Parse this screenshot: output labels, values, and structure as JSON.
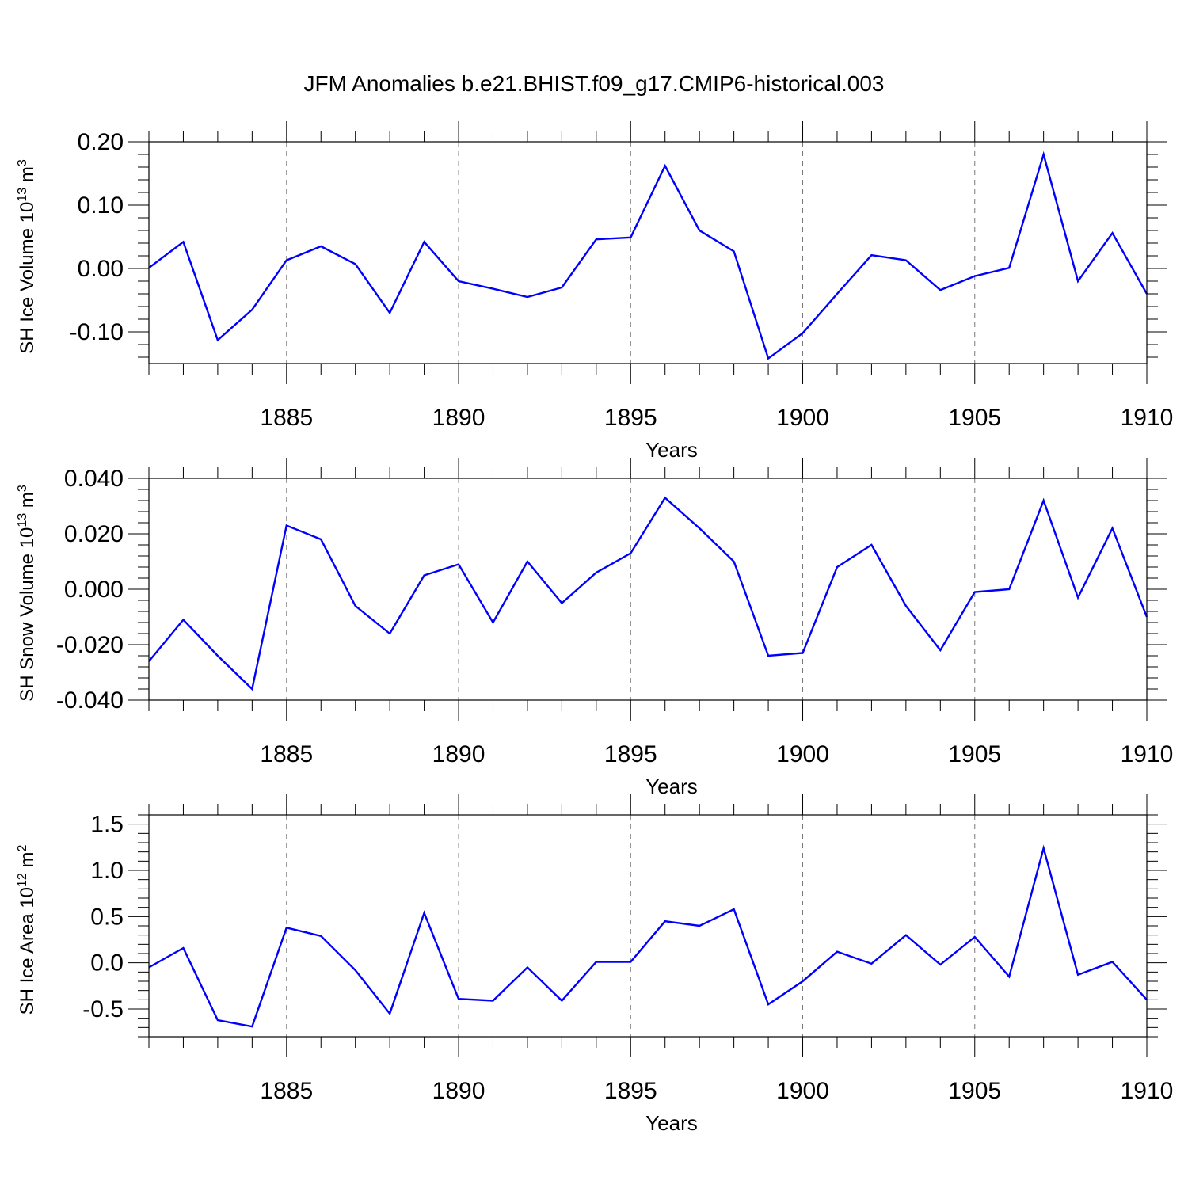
{
  "title": "JFM Anomalies b.e21.BHIST.f09_g17.CMIP6-historical.003",
  "colors": {
    "line": "#0000ff",
    "grid": "#777777",
    "axis": "#000000"
  },
  "chart_data": [
    {
      "type": "line",
      "ylabel": "SH Ice Volume",
      "yunit_base": "10",
      "yunit_exp": "13",
      "yunit_tail": "m",
      "yunit_tail_exp": "3",
      "xlabel": "Years",
      "xlim": [
        1881,
        1910
      ],
      "ylim": [
        -0.15,
        0.2
      ],
      "yticks": [
        0.2,
        0.1,
        0.0,
        -0.1
      ],
      "ytick_labels": [
        "0.20",
        "0.10",
        "0.00",
        "-0.10"
      ],
      "yminor_step": 0.02,
      "xticks": [
        1885,
        1890,
        1895,
        1900,
        1905,
        1910
      ],
      "xtick_labels": [
        "1885",
        "1890",
        "1895",
        "1900",
        "1905",
        "1910"
      ],
      "x": [
        1881,
        1882,
        1883,
        1884,
        1885,
        1886,
        1887,
        1888,
        1889,
        1890,
        1891,
        1892,
        1893,
        1894,
        1895,
        1896,
        1897,
        1898,
        1899,
        1900,
        1901,
        1902,
        1903,
        1904,
        1905,
        1906,
        1907,
        1908,
        1909,
        1910
      ],
      "series": [
        {
          "name": "SH Ice Volume",
          "values": [
            0.001,
            0.042,
            -0.113,
            -0.065,
            0.013,
            0.035,
            0.007,
            -0.07,
            0.042,
            -0.02,
            -0.032,
            -0.045,
            -0.03,
            0.046,
            0.049,
            0.162,
            0.06,
            0.027,
            -0.142,
            -0.102,
            -0.04,
            0.021,
            0.013,
            -0.034,
            -0.012,
            0.001,
            0.18,
            -0.02,
            0.056,
            -0.04
          ]
        }
      ]
    },
    {
      "type": "line",
      "ylabel": "SH Snow Volume",
      "yunit_base": "10",
      "yunit_exp": "13",
      "yunit_tail": "m",
      "yunit_tail_exp": "3",
      "xlabel": "Years",
      "xlim": [
        1881,
        1910
      ],
      "ylim": [
        -0.04,
        0.04
      ],
      "yticks": [
        0.04,
        0.02,
        0.0,
        -0.02,
        -0.04
      ],
      "ytick_labels": [
        "0.040",
        "0.020",
        "0.000",
        "-0.020",
        "-0.040"
      ],
      "yminor_step": 0.004,
      "xticks": [
        1885,
        1890,
        1895,
        1900,
        1905,
        1910
      ],
      "xtick_labels": [
        "1885",
        "1890",
        "1895",
        "1900",
        "1905",
        "1910"
      ],
      "x": [
        1881,
        1882,
        1883,
        1884,
        1885,
        1886,
        1887,
        1888,
        1889,
        1890,
        1891,
        1892,
        1893,
        1894,
        1895,
        1896,
        1897,
        1898,
        1899,
        1900,
        1901,
        1902,
        1903,
        1904,
        1905,
        1906,
        1907,
        1908,
        1909,
        1910
      ],
      "series": [
        {
          "name": "SH Snow Volume",
          "values": [
            -0.026,
            -0.011,
            -0.024,
            -0.036,
            0.023,
            0.018,
            -0.006,
            -0.016,
            0.005,
            0.009,
            -0.012,
            0.01,
            -0.005,
            0.006,
            0.013,
            0.033,
            0.022,
            0.01,
            -0.024,
            -0.023,
            0.008,
            0.016,
            -0.006,
            -0.022,
            -0.001,
            0.0,
            0.032,
            -0.003,
            0.022,
            -0.01
          ]
        }
      ]
    },
    {
      "type": "line",
      "ylabel": "SH Ice Area",
      "yunit_base": "10",
      "yunit_exp": "12",
      "yunit_tail": "m",
      "yunit_tail_exp": "2",
      "xlabel": "Years",
      "xlim": [
        1881,
        1910
      ],
      "ylim": [
        -0.8,
        1.6
      ],
      "yticks": [
        1.5,
        1.0,
        0.5,
        0.0,
        -0.5
      ],
      "ytick_labels": [
        "1.5",
        "1.0",
        "0.5",
        "0.0",
        "-0.5"
      ],
      "yminor_step": 0.1,
      "xticks": [
        1885,
        1890,
        1895,
        1900,
        1905,
        1910
      ],
      "xtick_labels": [
        "1885",
        "1890",
        "1895",
        "1900",
        "1905",
        "1910"
      ],
      "x": [
        1881,
        1882,
        1883,
        1884,
        1885,
        1886,
        1887,
        1888,
        1889,
        1890,
        1891,
        1892,
        1893,
        1894,
        1895,
        1896,
        1897,
        1898,
        1899,
        1900,
        1901,
        1902,
        1903,
        1904,
        1905,
        1906,
        1907,
        1908,
        1909,
        1910
      ],
      "series": [
        {
          "name": "SH Ice Area",
          "values": [
            -0.05,
            0.16,
            -0.62,
            -0.69,
            0.38,
            0.29,
            -0.08,
            -0.55,
            0.54,
            -0.39,
            -0.41,
            -0.05,
            -0.41,
            0.01,
            0.01,
            0.45,
            0.4,
            0.58,
            -0.45,
            -0.2,
            0.12,
            -0.01,
            0.3,
            -0.02,
            0.28,
            -0.15,
            1.24,
            -0.13,
            0.01,
            -0.4
          ]
        }
      ]
    }
  ]
}
